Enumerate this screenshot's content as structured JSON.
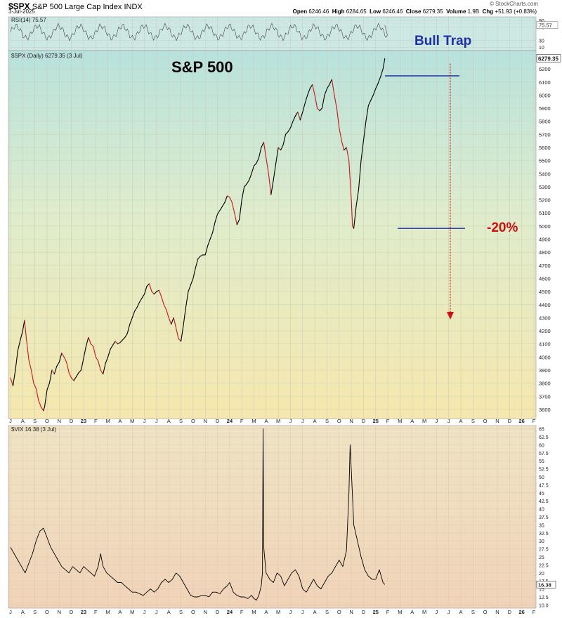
{
  "header": {
    "symbol": "$SPX",
    "name": "S&P 500 Large Cap Index",
    "exchange": "INDX",
    "date": "3-Jul-2025",
    "brand": "© StockCharts.com",
    "open_label": "Open",
    "open": "6246.46",
    "high_label": "High",
    "high": "6284.65",
    "low_label": "Low",
    "low": "6246.46",
    "close_label": "Close",
    "close": "6279.35",
    "volume_label": "Volume",
    "volume": "1.9B",
    "chg_label": "Chg",
    "chg": "+51.93 (+0.83%)"
  },
  "panels": {
    "rsi_label": "RSI(14) 75.57",
    "spx_label": "$SPX (Daily) 6279.35 (3 Jul)",
    "vix_label": "$VIX 16.38 (3 Jul)"
  },
  "annotations": {
    "title": "S&P 500",
    "bull_trap": "Bull Trap",
    "drop": "-20%"
  },
  "colors": {
    "price_up": "#000000",
    "price_down": "#c8161d",
    "level_line": "#1f2fa8",
    "arrow": "#d20f0f"
  },
  "chart_data": [
    {
      "type": "line",
      "panel": "RSI",
      "latest": 75.57,
      "yticks": [
        "90",
        "70",
        "30",
        "10"
      ],
      "ylim": [
        0,
        100
      ],
      "last_value_label": "75.57"
    },
    {
      "type": "line",
      "panel": "price",
      "series_name": "$SPX (Daily)",
      "x_months": [
        "J",
        "A",
        "S",
        "O",
        "N",
        "D",
        "23",
        "F",
        "M",
        "A",
        "M",
        "J",
        "J",
        "A",
        "S",
        "O",
        "N",
        "D",
        "24",
        "F",
        "M",
        "A",
        "M",
        "J",
        "J",
        "A",
        "S",
        "O",
        "N",
        "D",
        "25",
        "F",
        "M",
        "A",
        "M",
        "J",
        "J",
        "A",
        "S",
        "O",
        "N",
        "D",
        "26",
        "F"
      ],
      "yticks": [
        3600,
        3700,
        3800,
        3900,
        4000,
        4100,
        4200,
        4300,
        4400,
        4500,
        4600,
        4700,
        4800,
        4900,
        5000,
        5100,
        5200,
        5300,
        5400,
        5500,
        5600,
        5700,
        5800,
        5900,
        6000,
        6100,
        6200
      ],
      "ylim": [
        3530,
        6340
      ],
      "last_value_label": "6279.35",
      "points": [
        [
          0,
          3840
        ],
        [
          0.2,
          3780
        ],
        [
          0.4,
          3900
        ],
        [
          0.6,
          4050
        ],
        [
          0.8,
          4130
        ],
        [
          1.0,
          4200
        ],
        [
          1.15,
          4280
        ],
        [
          1.3,
          4140
        ],
        [
          1.5,
          3980
        ],
        [
          1.7,
          3900
        ],
        [
          1.9,
          3800
        ],
        [
          2.1,
          3760
        ],
        [
          2.3,
          3670
        ],
        [
          2.5,
          3620
        ],
        [
          2.7,
          3590
        ],
        [
          2.8,
          3620
        ],
        [
          3.0,
          3750
        ],
        [
          3.2,
          3800
        ],
        [
          3.4,
          3900
        ],
        [
          3.6,
          3870
        ],
        [
          3.8,
          3930
        ],
        [
          4.0,
          3960
        ],
        [
          4.2,
          4030
        ],
        [
          4.4,
          4000
        ],
        [
          4.6,
          3960
        ],
        [
          4.8,
          3880
        ],
        [
          5.0,
          3840
        ],
        [
          5.2,
          3820
        ],
        [
          5.4,
          3850
        ],
        [
          5.6,
          3880
        ],
        [
          5.8,
          3900
        ],
        [
          6.0,
          3990
        ],
        [
          6.2,
          4080
        ],
        [
          6.4,
          4150
        ],
        [
          6.6,
          4100
        ],
        [
          6.8,
          4080
        ],
        [
          7.0,
          4000
        ],
        [
          7.2,
          3970
        ],
        [
          7.4,
          3900
        ],
        [
          7.6,
          3870
        ],
        [
          7.8,
          3950
        ],
        [
          8.0,
          4000
        ],
        [
          8.2,
          4060
        ],
        [
          8.4,
          4090
        ],
        [
          8.6,
          4120
        ],
        [
          8.8,
          4100
        ],
        [
          9.0,
          4110
        ],
        [
          9.2,
          4130
        ],
        [
          9.4,
          4150
        ],
        [
          9.6,
          4180
        ],
        [
          9.8,
          4250
        ],
        [
          10.0,
          4300
        ],
        [
          10.2,
          4350
        ],
        [
          10.4,
          4380
        ],
        [
          10.6,
          4420
        ],
        [
          10.8,
          4450
        ],
        [
          11.0,
          4480
        ],
        [
          11.2,
          4540
        ],
        [
          11.4,
          4560
        ],
        [
          11.6,
          4500
        ],
        [
          11.8,
          4480
        ],
        [
          12.0,
          4500
        ],
        [
          12.2,
          4510
        ],
        [
          12.4,
          4460
        ],
        [
          12.6,
          4400
        ],
        [
          12.8,
          4360
        ],
        [
          13.0,
          4300
        ],
        [
          13.2,
          4250
        ],
        [
          13.4,
          4300
        ],
        [
          13.6,
          4220
        ],
        [
          13.8,
          4140
        ],
        [
          14.0,
          4120
        ],
        [
          14.2,
          4240
        ],
        [
          14.4,
          4380
        ],
        [
          14.6,
          4500
        ],
        [
          14.8,
          4550
        ],
        [
          15.0,
          4600
        ],
        [
          15.2,
          4680
        ],
        [
          15.4,
          4750
        ],
        [
          15.6,
          4770
        ],
        [
          15.8,
          4780
        ],
        [
          16.0,
          4780
        ],
        [
          16.2,
          4850
        ],
        [
          16.4,
          4900
        ],
        [
          16.6,
          4950
        ],
        [
          16.8,
          5030
        ],
        [
          17.0,
          5090
        ],
        [
          17.2,
          5120
        ],
        [
          17.4,
          5150
        ],
        [
          17.6,
          5180
        ],
        [
          17.8,
          5230
        ],
        [
          18.0,
          5220
        ],
        [
          18.2,
          5180
        ],
        [
          18.4,
          5100
        ],
        [
          18.6,
          5010
        ],
        [
          18.8,
          5050
        ],
        [
          19.0,
          5200
        ],
        [
          19.2,
          5300
        ],
        [
          19.4,
          5320
        ],
        [
          19.6,
          5350
        ],
        [
          19.8,
          5400
        ],
        [
          20.0,
          5460
        ],
        [
          20.2,
          5480
        ],
        [
          20.4,
          5520
        ],
        [
          20.6,
          5600
        ],
        [
          20.8,
          5640
        ],
        [
          21.0,
          5520
        ],
        [
          21.2,
          5400
        ],
        [
          21.4,
          5240
        ],
        [
          21.6,
          5350
        ],
        [
          21.8,
          5480
        ],
        [
          22.0,
          5600
        ],
        [
          22.2,
          5580
        ],
        [
          22.4,
          5620
        ],
        [
          22.6,
          5700
        ],
        [
          22.8,
          5720
        ],
        [
          23.0,
          5750
        ],
        [
          23.2,
          5800
        ],
        [
          23.4,
          5840
        ],
        [
          23.6,
          5870
        ],
        [
          23.8,
          5810
        ],
        [
          24.0,
          5870
        ],
        [
          24.2,
          5940
        ],
        [
          24.4,
          6000
        ],
        [
          24.6,
          6050
        ],
        [
          24.8,
          6080
        ],
        [
          25.0,
          6000
        ],
        [
          25.2,
          5900
        ],
        [
          25.4,
          5880
        ],
        [
          25.6,
          5900
        ],
        [
          25.8,
          6000
        ],
        [
          26.0,
          6050
        ],
        [
          26.2,
          6080
        ],
        [
          26.4,
          6120
        ],
        [
          26.6,
          6000
        ],
        [
          26.8,
          5900
        ],
        [
          27.0,
          5750
        ],
        [
          27.2,
          5650
        ],
        [
          27.4,
          5580
        ],
        [
          27.6,
          5600
        ],
        [
          27.8,
          5500
        ],
        [
          28.0,
          5200
        ],
        [
          28.1,
          5000
        ],
        [
          28.2,
          4982
        ],
        [
          28.4,
          5150
        ],
        [
          28.6,
          5280
        ],
        [
          28.8,
          5500
        ],
        [
          29.0,
          5650
        ],
        [
          29.2,
          5800
        ],
        [
          29.4,
          5920
        ],
        [
          29.6,
          5960
        ],
        [
          29.8,
          6000
        ],
        [
          30.0,
          6050
        ],
        [
          30.2,
          6090
        ],
        [
          30.4,
          6140
        ],
        [
          30.6,
          6200
        ],
        [
          30.75,
          6279.35
        ]
      ],
      "resistance_level": 6147,
      "support_level": 4982
    },
    {
      "type": "line",
      "panel": "VIX",
      "series_name": "$VIX",
      "x_months": [
        "J",
        "A",
        "S",
        "O",
        "N",
        "D",
        "23",
        "F",
        "M",
        "A",
        "M",
        "J",
        "J",
        "A",
        "S",
        "O",
        "N",
        "D",
        "24",
        "F",
        "M",
        "A",
        "M",
        "J",
        "J",
        "A",
        "S",
        "O",
        "N",
        "D",
        "25",
        "F",
        "M",
        "A",
        "M",
        "J",
        "J",
        "A",
        "S",
        "O",
        "N",
        "D",
        "26",
        "F"
      ],
      "yticks": [
        "65",
        "62.5",
        "60",
        "57.5",
        "55",
        "52.5",
        "50",
        "47.5",
        "45",
        "42.5",
        "40",
        "37.5",
        "35",
        "32.5",
        "30",
        "27.5",
        "25",
        "22.5",
        "20",
        "17.5",
        "15",
        "12.5",
        "10.0"
      ],
      "ylim": [
        9,
        66
      ],
      "last_value_label": "16.38",
      "points": [
        [
          0,
          28
        ],
        [
          0.3,
          26
        ],
        [
          0.6,
          24
        ],
        [
          0.9,
          22
        ],
        [
          1.2,
          20
        ],
        [
          1.5,
          23
        ],
        [
          1.8,
          26
        ],
        [
          2.1,
          30
        ],
        [
          2.4,
          33
        ],
        [
          2.7,
          34
        ],
        [
          3.0,
          31
        ],
        [
          3.3,
          28
        ],
        [
          3.6,
          26
        ],
        [
          3.9,
          24
        ],
        [
          4.2,
          22
        ],
        [
          4.5,
          21
        ],
        [
          4.8,
          20
        ],
        [
          5.1,
          22
        ],
        [
          5.4,
          21
        ],
        [
          5.7,
          20
        ],
        [
          6.0,
          22
        ],
        [
          6.3,
          21
        ],
        [
          6.6,
          20
        ],
        [
          6.9,
          19
        ],
        [
          7.2,
          22
        ],
        [
          7.4,
          26
        ],
        [
          7.6,
          22
        ],
        [
          7.9,
          20
        ],
        [
          8.2,
          19
        ],
        [
          8.5,
          18
        ],
        [
          8.8,
          17
        ],
        [
          9.1,
          17
        ],
        [
          9.4,
          16
        ],
        [
          9.7,
          15
        ],
        [
          10.0,
          14
        ],
        [
          10.3,
          14
        ],
        [
          10.6,
          13.5
        ],
        [
          10.9,
          13
        ],
        [
          11.2,
          14
        ],
        [
          11.5,
          15
        ],
        [
          11.8,
          14
        ],
        [
          12.1,
          15
        ],
        [
          12.4,
          17
        ],
        [
          12.7,
          18
        ],
        [
          13.0,
          17
        ],
        [
          13.3,
          18
        ],
        [
          13.6,
          20
        ],
        [
          13.9,
          19
        ],
        [
          14.2,
          17
        ],
        [
          14.5,
          15
        ],
        [
          14.8,
          13
        ],
        [
          15.1,
          12.5
        ],
        [
          15.4,
          12.5
        ],
        [
          15.7,
          13
        ],
        [
          16.0,
          13
        ],
        [
          16.3,
          12.5
        ],
        [
          16.6,
          14
        ],
        [
          16.9,
          14
        ],
        [
          17.2,
          13.5
        ],
        [
          17.5,
          15
        ],
        [
          17.8,
          16
        ],
        [
          18.0,
          17
        ],
        [
          18.3,
          14
        ],
        [
          18.6,
          13
        ],
        [
          18.9,
          12.5
        ],
        [
          19.2,
          12.5
        ],
        [
          19.5,
          12
        ],
        [
          19.8,
          13
        ],
        [
          20.0,
          12
        ],
        [
          20.2,
          11.5
        ],
        [
          20.4,
          13
        ],
        [
          20.6,
          16
        ],
        [
          20.7,
          20
        ],
        [
          20.75,
          65
        ],
        [
          20.8,
          28
        ],
        [
          21.0,
          20
        ],
        [
          21.3,
          18
        ],
        [
          21.6,
          17
        ],
        [
          21.9,
          20
        ],
        [
          22.2,
          19
        ],
        [
          22.5,
          16
        ],
        [
          22.8,
          18
        ],
        [
          23.1,
          20
        ],
        [
          23.4,
          21
        ],
        [
          23.7,
          19
        ],
        [
          24.0,
          15
        ],
        [
          24.3,
          14
        ],
        [
          24.6,
          16
        ],
        [
          24.9,
          18
        ],
        [
          25.2,
          16
        ],
        [
          25.5,
          15
        ],
        [
          25.8,
          17
        ],
        [
          26.1,
          19
        ],
        [
          26.4,
          20
        ],
        [
          26.7,
          22
        ],
        [
          27.0,
          24
        ],
        [
          27.3,
          22
        ],
        [
          27.6,
          27
        ],
        [
          27.8,
          45
        ],
        [
          27.9,
          60
        ],
        [
          28.0,
          52
        ],
        [
          28.2,
          35
        ],
        [
          28.5,
          30
        ],
        [
          28.8,
          25
        ],
        [
          29.1,
          21
        ],
        [
          29.4,
          19
        ],
        [
          29.7,
          18
        ],
        [
          30.0,
          18
        ],
        [
          30.3,
          21
        ],
        [
          30.6,
          17
        ],
        [
          30.75,
          16.38
        ]
      ]
    }
  ]
}
